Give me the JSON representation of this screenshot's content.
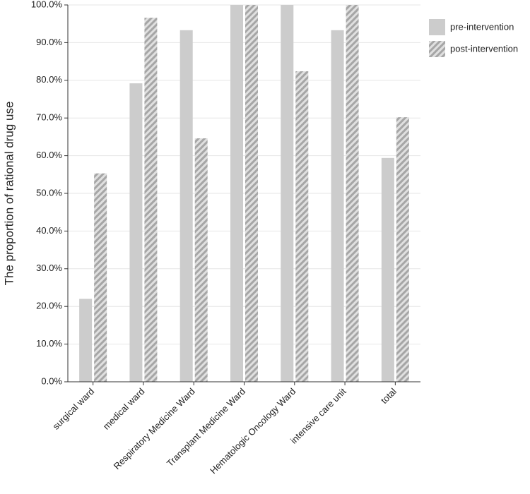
{
  "chart_data": {
    "type": "bar",
    "y_label": "The proportion of rational drug use",
    "categories": [
      "surgical ward",
      "medical ward",
      "Respiratory Medicine Ward",
      "Transplant Medicine Ward",
      "Hematologic Oncology Ward",
      "intensive care unit",
      "total"
    ],
    "series": [
      {
        "name": "pre-intervention",
        "color": "#cccccc",
        "hatch": false,
        "values": [
          22.0,
          79.2,
          93.3,
          100,
          100,
          93.3,
          59.4
        ]
      },
      {
        "name": "post-intervention",
        "color": "#a6a6a6",
        "hatch": true,
        "values": [
          55.3,
          96.6,
          64.6,
          100,
          82.4,
          100,
          70.2
        ]
      }
    ],
    "ylim": [
      0,
      100
    ],
    "yticks": [
      {
        "value": 0,
        "label": "0.0%"
      },
      {
        "value": 10,
        "label": "10.0%"
      },
      {
        "value": 20,
        "label": "20.0%"
      },
      {
        "value": 30,
        "label": "30.0%"
      },
      {
        "value": 40,
        "label": "40.0%"
      },
      {
        "value": 50,
        "label": "50.0%"
      },
      {
        "value": 60,
        "label": "60.0%"
      },
      {
        "value": 70,
        "label": "70.0%"
      },
      {
        "value": 80,
        "label": "80.0%"
      },
      {
        "value": 90,
        "label": "90.0%"
      },
      {
        "value": 100,
        "label": "100.0%"
      }
    ],
    "grid": true,
    "legend": "top-right"
  }
}
